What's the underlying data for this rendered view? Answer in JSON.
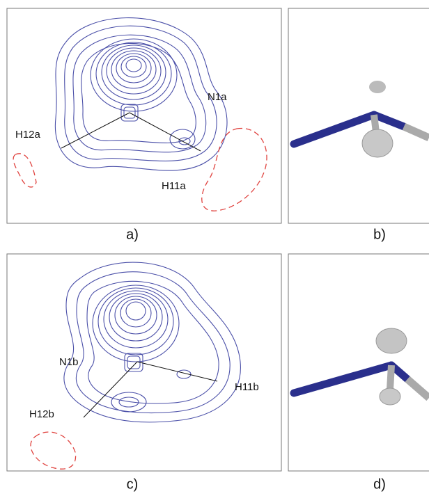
{
  "panels": [
    {
      "label": "a)",
      "atoms": [
        "N1a",
        "H12a",
        "H11a"
      ]
    },
    {
      "label": "b)"
    },
    {
      "label": "c)",
      "atoms": [
        "N1b",
        "H11b",
        "H12b"
      ]
    },
    {
      "label": "d)"
    }
  ]
}
